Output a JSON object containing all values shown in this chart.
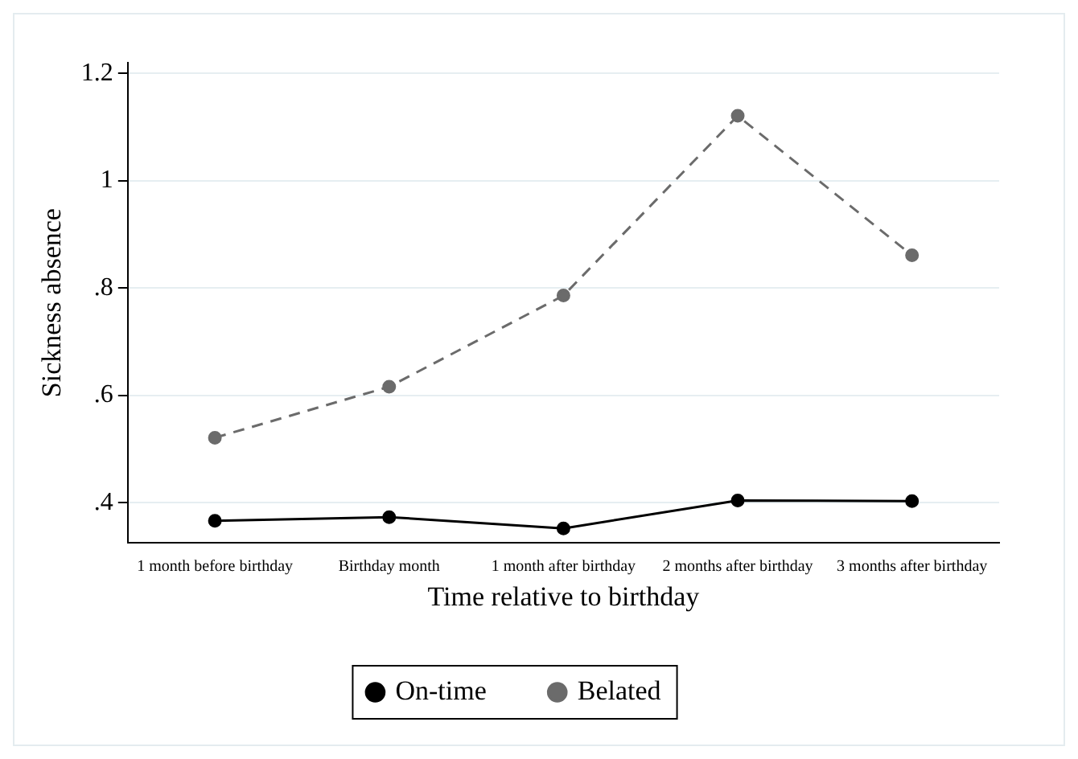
{
  "chart_data": {
    "type": "line",
    "xlabel": "Time relative to birthday",
    "ylabel": "Sickness absence",
    "categories": [
      "1 month before birthday",
      "Birthday month",
      "1 month after birthday",
      "2 months after birthday",
      "3 months after birthday"
    ],
    "series": [
      {
        "name": "On-time",
        "color": "#000000",
        "line_style": "solid",
        "values": [
          0.366,
          0.373,
          0.352,
          0.404,
          0.403
        ]
      },
      {
        "name": "Belated",
        "color": "#6b6b6b",
        "line_style": "dashed",
        "values": [
          0.521,
          0.616,
          0.786,
          1.121,
          0.861
        ]
      }
    ],
    "ylim": [
      0.325,
      1.22
    ],
    "yticks": [
      {
        "value": 0.4,
        "label": ".4"
      },
      {
        "value": 0.6,
        "label": ".6"
      },
      {
        "value": 0.8,
        "label": ".8"
      },
      1,
      1.2
    ],
    "grid": "y",
    "legend": "bottom",
    "marker": "circle"
  }
}
